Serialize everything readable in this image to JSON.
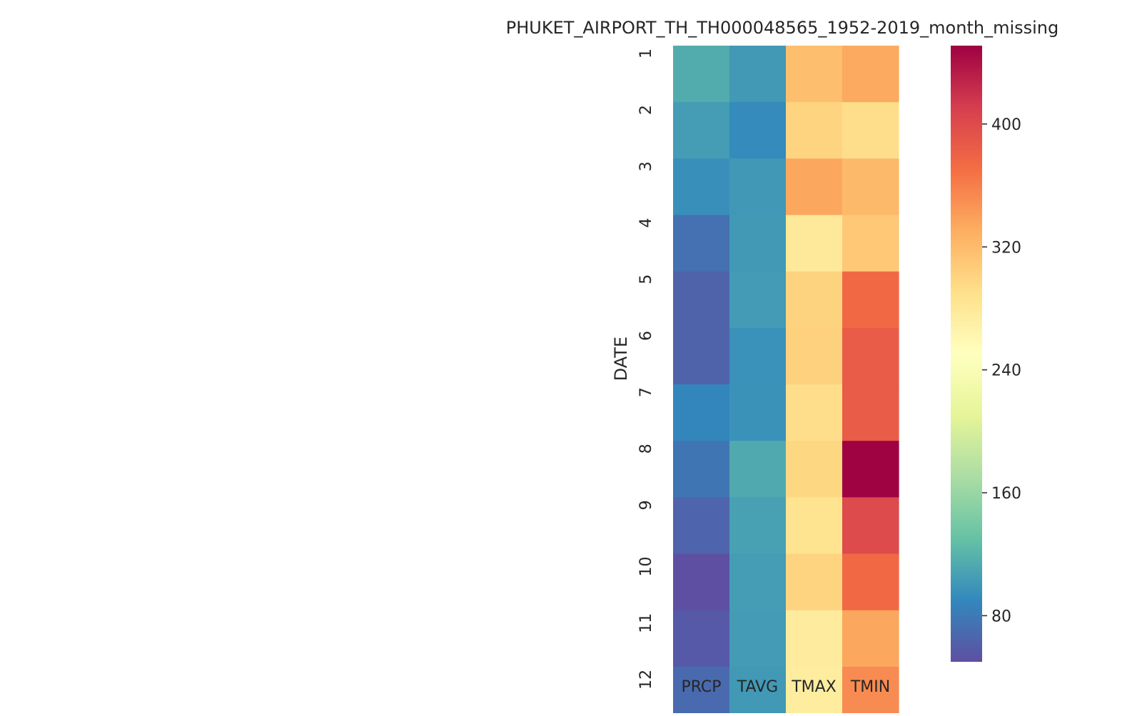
{
  "chart_data": {
    "type": "heatmap",
    "title": "PHUKET_AIRPORT_TH_TH000048565_1952-2019_month_missing",
    "ylabel": "DATE",
    "xlabel": "",
    "columns": [
      "PRCP",
      "TAVG",
      "TMAX",
      "TMIN"
    ],
    "rows": [
      "1",
      "2",
      "3",
      "4",
      "5",
      "6",
      "7",
      "8",
      "9",
      "10",
      "11",
      "12"
    ],
    "values": [
      [
        115,
        102,
        318,
        333
      ],
      [
        104,
        92,
        300,
        292
      ],
      [
        95,
        101,
        335,
        322
      ],
      [
        73,
        102,
        280,
        310
      ],
      [
        64,
        103,
        301,
        375
      ],
      [
        64,
        96,
        303,
        385
      ],
      [
        89,
        97,
        292,
        385
      ],
      [
        77,
        113,
        298,
        450
      ],
      [
        65,
        107,
        287,
        400
      ],
      [
        49,
        104,
        300,
        375
      ],
      [
        57,
        103,
        277,
        335
      ],
      [
        69,
        102,
        275,
        352
      ]
    ],
    "colormap": "Spectral_r",
    "color_range": [
      50,
      451
    ],
    "colorbar_ticks": [
      80,
      160,
      240,
      320,
      400
    ],
    "colorbar_tick_labels": [
      "80",
      "160",
      "240",
      "320",
      "400"
    ]
  }
}
